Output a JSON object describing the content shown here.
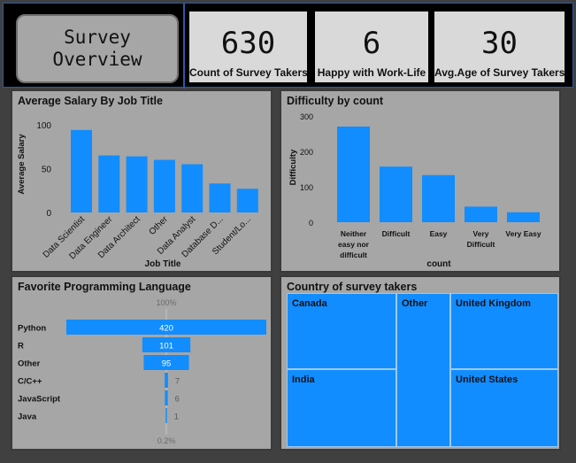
{
  "title": "Survey\nOverview",
  "kpis": [
    {
      "value": "630",
      "label": "Count of Survey Takers"
    },
    {
      "value": "6",
      "label": "Happy with Work-Life"
    },
    {
      "value": "30",
      "label": "Avg.Age of Survey Takers"
    }
  ],
  "colors": {
    "bar": "#118dff",
    "panel": "#a6a6a6",
    "text": "#111111"
  },
  "chart_data": [
    {
      "type": "bar",
      "title": "Average Salary By Job Title",
      "xlabel": "Job Title",
      "ylabel": "Average Salary",
      "ylim": [
        0,
        110
      ],
      "yticks": [
        "0",
        "50",
        "100"
      ],
      "yticks_values": [
        0,
        50,
        100
      ],
      "categories": [
        "Data Scientist",
        "Data Engineer",
        "Data Architect",
        "Other",
        "Data Analyst",
        "Database D...",
        "Student/Lo..."
      ],
      "values": [
        94,
        65,
        64,
        60,
        55,
        33,
        27
      ]
    },
    {
      "type": "bar",
      "title": "Difficulty by count",
      "xlabel": "count",
      "ylabel": "Difficulty",
      "ylim": [
        0,
        310
      ],
      "yticks": [
        "0",
        "100",
        "200",
        "300"
      ],
      "yticks_values": [
        0,
        100,
        200,
        300
      ],
      "categories": [
        "Neither easy nor difficult",
        "Difficult",
        "Easy",
        "Very Difficult",
        "Very Easy"
      ],
      "category_lines": [
        [
          "Neither",
          "easy nor",
          "difficult"
        ],
        [
          "Difficult"
        ],
        [
          "Easy"
        ],
        [
          "Very",
          "Difficult"
        ],
        [
          "Very Easy"
        ]
      ],
      "values": [
        270,
        157,
        133,
        44,
        28
      ]
    },
    {
      "type": "bar",
      "title": "Favorite Programming Language",
      "top_label": "100%",
      "bottom_label": "0.2%",
      "categories": [
        "Python",
        "R",
        "Other",
        "C/C++",
        "JavaScript",
        "Java"
      ],
      "values": [
        420,
        101,
        95,
        7,
        6,
        1
      ],
      "value_labels": [
        "420",
        "101",
        "95",
        "7",
        "6",
        "1"
      ]
    },
    {
      "type": "treemap",
      "title": "Country of survey takers",
      "cells": [
        {
          "label": "Canada"
        },
        {
          "label": "Other"
        },
        {
          "label": "United Kingdom"
        },
        {
          "label": "India"
        },
        {
          "label": "United States"
        }
      ]
    }
  ]
}
